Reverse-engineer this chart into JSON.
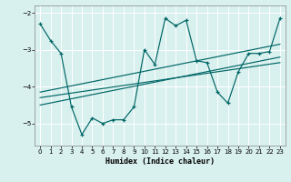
{
  "xlabel": "Humidex (Indice chaleur)",
  "bg_color": "#d8f0ee",
  "grid_color": "#ffffff",
  "line_color": "#006666",
  "xlim": [
    -0.5,
    23.5
  ],
  "ylim": [
    -5.6,
    -1.8
  ],
  "yticks": [
    -5,
    -4,
    -3,
    -2
  ],
  "xticks": [
    0,
    1,
    2,
    3,
    4,
    5,
    6,
    7,
    8,
    9,
    10,
    11,
    12,
    13,
    14,
    15,
    16,
    17,
    18,
    19,
    20,
    21,
    22,
    23
  ],
  "series1_x": [
    0,
    1,
    2,
    3,
    4,
    5,
    6,
    7,
    8,
    9,
    10,
    11,
    12,
    13,
    14,
    15,
    16,
    17,
    18,
    19,
    20,
    21,
    22,
    23
  ],
  "series1_y": [
    -2.3,
    -2.75,
    -3.1,
    -4.55,
    -5.3,
    -4.85,
    -5.0,
    -4.9,
    -4.9,
    -4.55,
    -3.0,
    -3.4,
    -2.15,
    -2.35,
    -2.2,
    -3.3,
    -3.35,
    -4.15,
    -4.45,
    -3.6,
    -3.1,
    -3.1,
    -3.05,
    -2.15
  ],
  "trend1_x": [
    0,
    23
  ],
  "trend1_y": [
    -4.5,
    -3.2
  ],
  "trend2_x": [
    0,
    23
  ],
  "trend2_y": [
    -4.3,
    -3.35
  ],
  "trend3_x": [
    0,
    23
  ],
  "trend3_y": [
    -4.15,
    -2.85
  ]
}
